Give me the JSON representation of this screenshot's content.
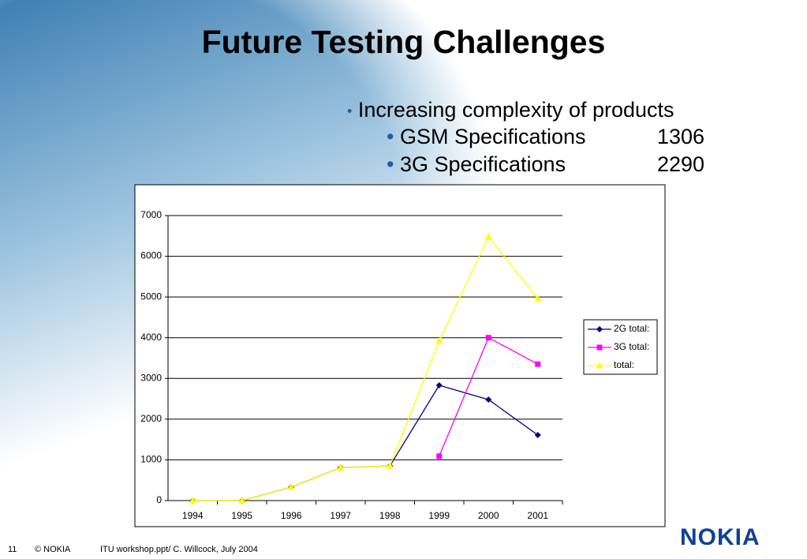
{
  "slide": {
    "title": "Future Testing Challenges",
    "bullets": [
      {
        "text": "Increasing complexity of products"
      },
      {
        "text": "GSM Specifications",
        "value": "1306"
      },
      {
        "text": "3G Specifications",
        "value": "2290"
      }
    ],
    "footer": {
      "page": "11",
      "copyright": "© NOKIA",
      "source": "ITU workshop.ppt/ C. Willcock, July 2004",
      "logo": "NOKIA"
    }
  },
  "chart_data": {
    "type": "line",
    "categories": [
      "1994",
      "1995",
      "1996",
      "1997",
      "1998",
      "1999",
      "2000",
      "2001"
    ],
    "series": [
      {
        "name": "2G total:",
        "color": "#000080",
        "marker": "diamond",
        "values": [
          0,
          0,
          330,
          810,
          850,
          2830,
          2480,
          1610
        ]
      },
      {
        "name": "3G total:",
        "color": "#ff00ff",
        "marker": "square",
        "values": [
          null,
          null,
          null,
          null,
          null,
          1090,
          4000,
          3350
        ]
      },
      {
        "name": "total:",
        "color": "#ffff00",
        "marker": "triangle",
        "values": [
          0,
          0,
          330,
          810,
          850,
          3920,
          6480,
          4960
        ]
      }
    ],
    "ylim": [
      0,
      7000
    ],
    "yticks": [
      0,
      1000,
      2000,
      3000,
      4000,
      5000,
      6000,
      7000
    ],
    "grid": true,
    "legend": "right"
  }
}
